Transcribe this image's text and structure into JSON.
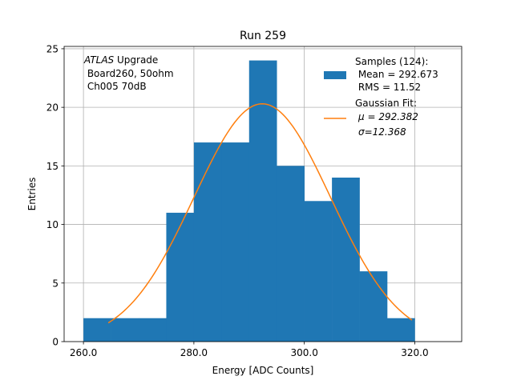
{
  "chart_data": {
    "type": "bar",
    "title": "Run 259",
    "xlabel": "Energy [ADC Counts]",
    "ylabel": "Entries",
    "xlim": [
      256.5,
      328.5
    ],
    "ylim": [
      0,
      25.2
    ],
    "grid": true,
    "xticks": [
      260,
      280,
      300,
      320
    ],
    "xtick_labels": [
      "260.0",
      "280.0",
      "300.0",
      "320.0"
    ],
    "yticks": [
      0,
      5,
      10,
      15,
      20,
      25
    ],
    "ytick_labels": [
      "0",
      "5",
      "10",
      "15",
      "20",
      "25"
    ],
    "histogram": {
      "name": "Samples (124):",
      "color": "#1f77b4",
      "bin_edges": [
        260,
        265,
        270,
        275,
        280,
        285,
        290,
        295,
        300,
        305,
        310,
        315,
        320
      ],
      "counts": [
        2,
        2,
        2,
        11,
        17,
        17,
        24,
        15,
        12,
        14,
        6,
        2
      ]
    },
    "fit": {
      "name": "Gaussian Fit:",
      "color": "#ff7f0e",
      "amplitude": 20.3,
      "mu": 292.382,
      "sigma": 12.368,
      "x_range": [
        264.5,
        319.5
      ]
    },
    "legend": {
      "position": "top-right",
      "entries": [
        {
          "label": "Samples (124):",
          "lines": [
            " Mean = 292.673",
            " RMS = 11.52"
          ],
          "style": "patch",
          "color": "#1f77b4"
        },
        {
          "label": "Gaussian Fit:",
          "lines": [
            "μ = 292.382",
            "σ=12.368"
          ],
          "style": "line",
          "color": "#ff7f0e"
        }
      ]
    },
    "annotation": {
      "position": "top-left",
      "italic": "ATLAS",
      "line1_rest": " Upgrade",
      "line2": " Board260, 50ohm",
      "line3": " Ch005 70dB"
    }
  }
}
